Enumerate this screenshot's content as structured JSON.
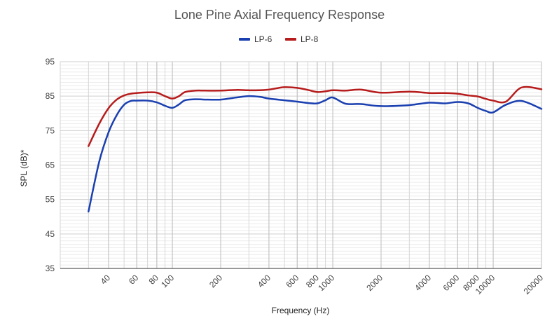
{
  "chart_data": {
    "type": "line",
    "title": "Lone Pine Axial Frequency Response",
    "xlabel": "Frequency (Hz)",
    "ylabel": "SPL (dB)*",
    "x_scale": "log",
    "xlim": [
      20,
      20000
    ],
    "ylim": [
      35,
      95
    ],
    "y_ticks": [
      35,
      45,
      55,
      65,
      75,
      85,
      95
    ],
    "x_ticks": [
      40,
      60,
      80,
      100,
      200,
      400,
      600,
      800,
      1000,
      2000,
      4000,
      6000,
      8000,
      10000,
      20000
    ],
    "x_tick_labels": [
      "40",
      "60",
      "80",
      "100",
      "200",
      "400",
      "600",
      "800",
      "1000",
      "2000",
      "4000",
      "6000",
      "8000",
      "10000",
      "20000"
    ],
    "y_tick_labels": [
      "35",
      "45",
      "55",
      "65",
      "75",
      "85",
      "95"
    ],
    "grid": true,
    "minor_grid": true,
    "legend_position": "top",
    "series": [
      {
        "name": "LP-6",
        "color": "#1a3fb0",
        "x": [
          30,
          35,
          40,
          45,
          50,
          55,
          60,
          70,
          80,
          90,
          100,
          110,
          120,
          140,
          160,
          200,
          250,
          300,
          350,
          400,
          500,
          600,
          700,
          800,
          900,
          1000,
          1200,
          1500,
          2000,
          3000,
          4000,
          5000,
          6000,
          7000,
          8000,
          9000,
          10000,
          12000,
          15000,
          20000
        ],
        "y": [
          51.5,
          66,
          74.5,
          79.5,
          82.5,
          83.6,
          83.7,
          83.7,
          83.2,
          82.2,
          81.6,
          82.6,
          83.8,
          84.1,
          84.0,
          84.0,
          84.6,
          85.0,
          84.8,
          84.3,
          83.8,
          83.4,
          83.0,
          82.9,
          83.8,
          84.6,
          82.8,
          82.7,
          82.1,
          82.4,
          83.1,
          82.9,
          83.3,
          82.9,
          81.6,
          80.7,
          80.3,
          82.5,
          83.6,
          81.3
        ]
      },
      {
        "name": "LP-8",
        "color": "#b71c1c",
        "x": [
          30,
          35,
          40,
          45,
          50,
          55,
          60,
          70,
          80,
          90,
          100,
          110,
          120,
          140,
          160,
          200,
          250,
          300,
          350,
          400,
          450,
          500,
          600,
          700,
          800,
          900,
          1000,
          1200,
          1500,
          2000,
          3000,
          4000,
          5000,
          6000,
          7000,
          8000,
          9000,
          10000,
          12000,
          15000,
          20000
        ],
        "y": [
          70.5,
          77,
          81.5,
          84.0,
          85.2,
          85.7,
          85.9,
          86.1,
          86.0,
          85.0,
          84.3,
          85.0,
          86.2,
          86.6,
          86.6,
          86.6,
          86.8,
          86.7,
          86.7,
          86.9,
          87.3,
          87.6,
          87.4,
          86.8,
          86.2,
          86.4,
          86.7,
          86.6,
          86.9,
          86.0,
          86.3,
          85.9,
          85.9,
          85.7,
          85.2,
          84.9,
          84.2,
          83.7,
          83.4,
          87.5,
          87.0
        ]
      }
    ]
  }
}
